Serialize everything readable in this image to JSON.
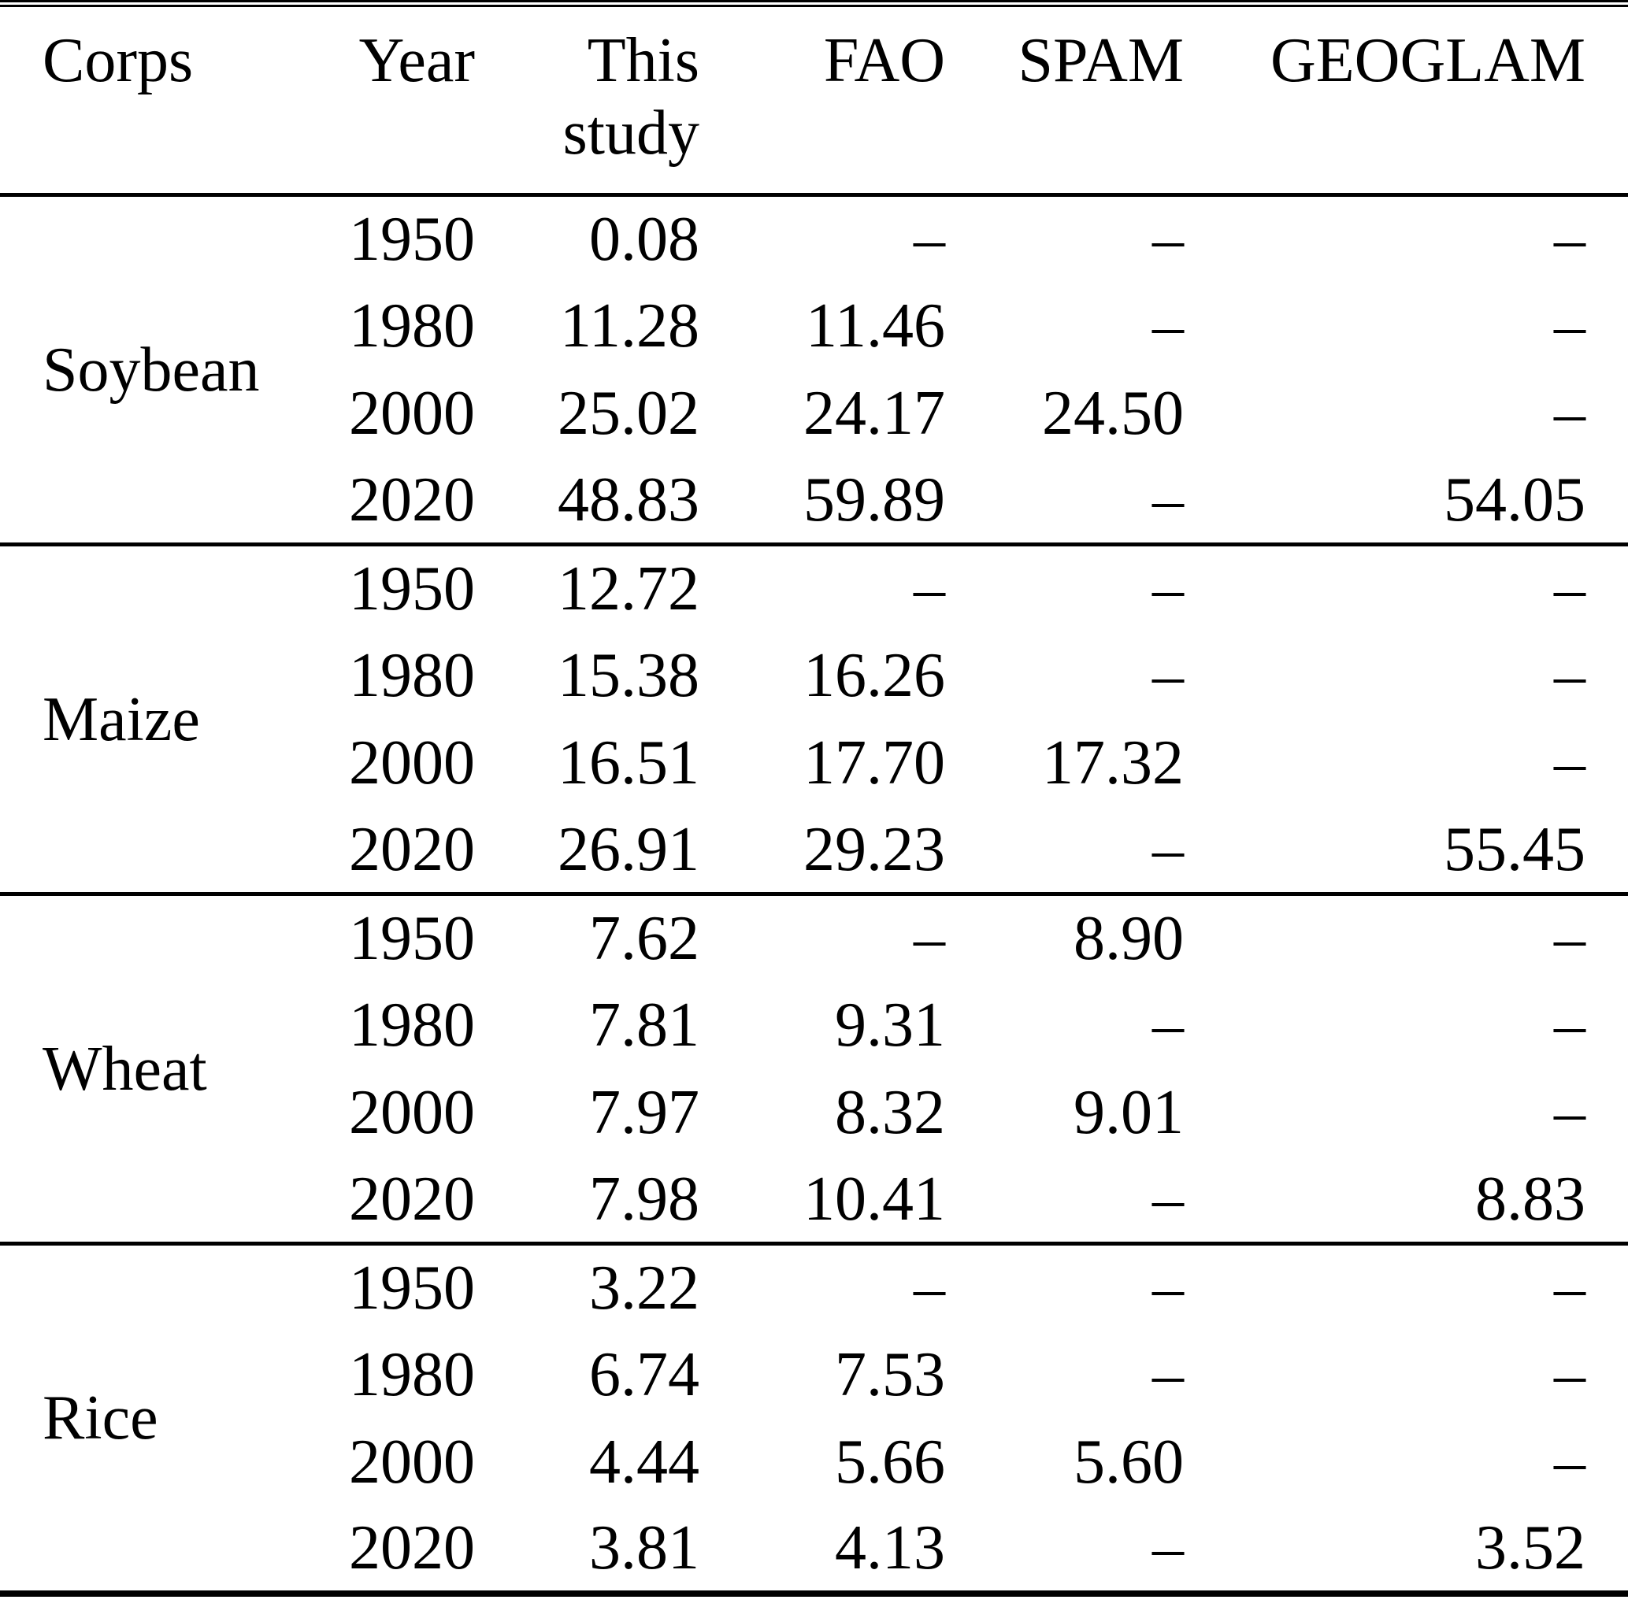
{
  "table": {
    "header": {
      "corps": "Corps",
      "year": "Year",
      "this_study_line1": "This",
      "this_study_line2": "study",
      "fao": "FAO",
      "spam": "SPAM",
      "geoglam": "GEOGLAM"
    },
    "sections": [
      {
        "crop": "Soybean",
        "rows": [
          {
            "year": "1950",
            "this_study": "0.08",
            "fao": "–",
            "spam": "–",
            "geoglam": "–"
          },
          {
            "year": "1980",
            "this_study": "11.28",
            "fao": "11.46",
            "spam": "–",
            "geoglam": "–"
          },
          {
            "year": "2000",
            "this_study": "25.02",
            "fao": "24.17",
            "spam": "24.50",
            "geoglam": "–"
          },
          {
            "year": "2020",
            "this_study": "48.83",
            "fao": "59.89",
            "spam": "–",
            "geoglam": "54.05"
          }
        ]
      },
      {
        "crop": "Maize",
        "rows": [
          {
            "year": "1950",
            "this_study": "12.72",
            "fao": "–",
            "spam": "–",
            "geoglam": "–"
          },
          {
            "year": "1980",
            "this_study": "15.38",
            "fao": "16.26",
            "spam": "–",
            "geoglam": "–"
          },
          {
            "year": "2000",
            "this_study": "16.51",
            "fao": "17.70",
            "spam": "17.32",
            "geoglam": "–"
          },
          {
            "year": "2020",
            "this_study": "26.91",
            "fao": "29.23",
            "spam": "–",
            "geoglam": "55.45"
          }
        ]
      },
      {
        "crop": "Wheat",
        "rows": [
          {
            "year": "1950",
            "this_study": "7.62",
            "fao": "–",
            "spam": "8.90",
            "geoglam": "–"
          },
          {
            "year": "1980",
            "this_study": "7.81",
            "fao": "9.31",
            "spam": "–",
            "geoglam": "–"
          },
          {
            "year": "2000",
            "this_study": "7.97",
            "fao": "8.32",
            "spam": "9.01",
            "geoglam": "–"
          },
          {
            "year": "2020",
            "this_study": "7.98",
            "fao": "10.41",
            "spam": "–",
            "geoglam": "8.83"
          }
        ]
      },
      {
        "crop": "Rice",
        "rows": [
          {
            "year": "1950",
            "this_study": "3.22",
            "fao": "–",
            "spam": "–",
            "geoglam": "–"
          },
          {
            "year": "1980",
            "this_study": "6.74",
            "fao": "7.53",
            "spam": "–",
            "geoglam": "–"
          },
          {
            "year": "2000",
            "this_study": "4.44",
            "fao": "5.66",
            "spam": "5.60",
            "geoglam": "–"
          },
          {
            "year": "2020",
            "this_study": "3.81",
            "fao": "4.13",
            "spam": "–",
            "geoglam": "3.52"
          }
        ]
      }
    ],
    "colors": {
      "text": "#000000",
      "background": "#ffffff",
      "rule": "#000000"
    }
  }
}
